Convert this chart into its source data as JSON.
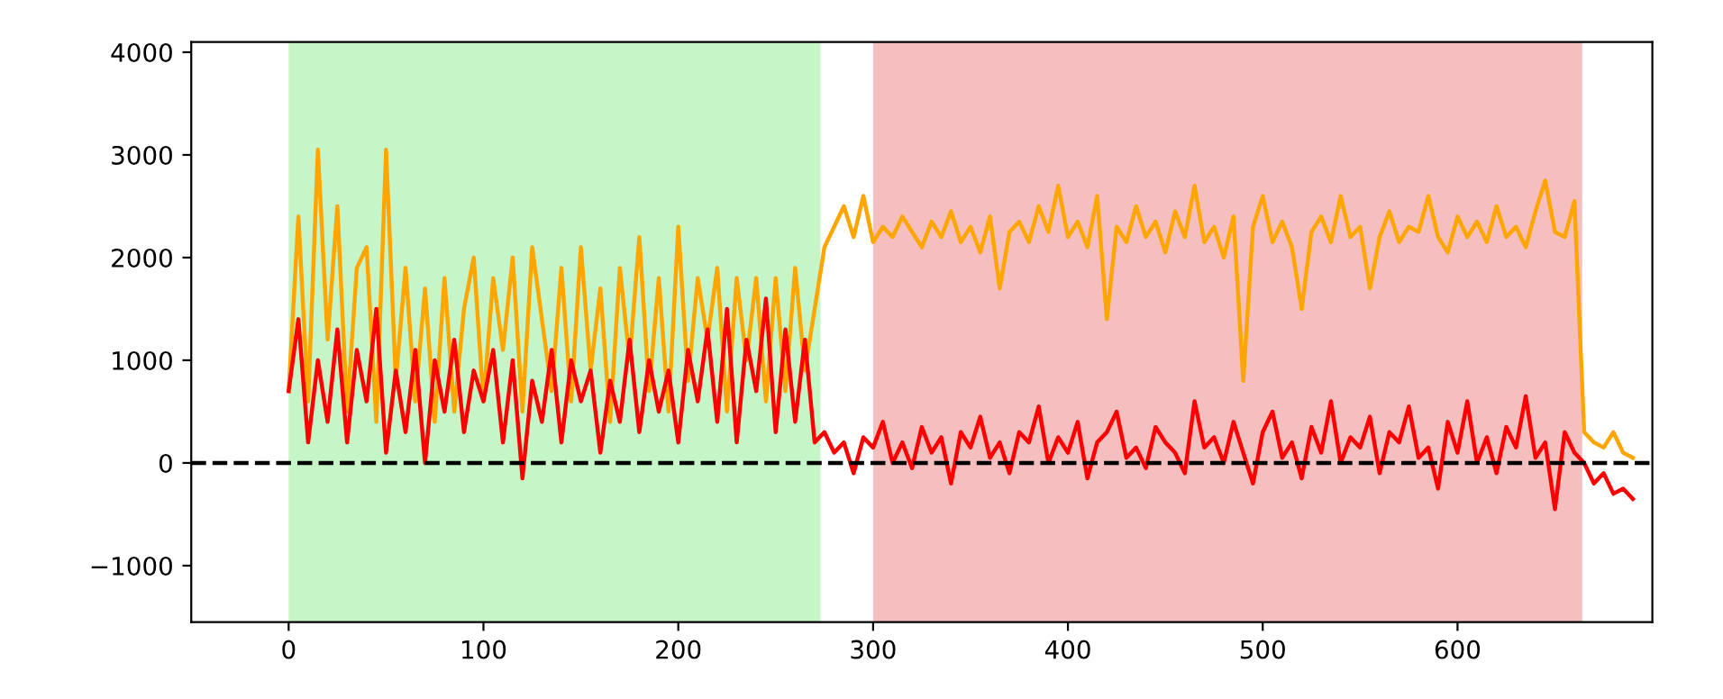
{
  "chart_data": {
    "type": "line",
    "x": [
      0,
      5,
      10,
      15,
      20,
      25,
      30,
      35,
      40,
      45,
      50,
      55,
      60,
      65,
      70,
      75,
      80,
      85,
      90,
      95,
      100,
      105,
      110,
      115,
      120,
      125,
      130,
      135,
      140,
      145,
      150,
      155,
      160,
      165,
      170,
      175,
      180,
      185,
      190,
      195,
      200,
      205,
      210,
      215,
      220,
      225,
      230,
      235,
      240,
      245,
      250,
      255,
      260,
      265,
      270,
      275,
      280,
      285,
      290,
      295,
      300,
      305,
      310,
      315,
      320,
      325,
      330,
      335,
      340,
      345,
      350,
      355,
      360,
      365,
      370,
      375,
      380,
      385,
      390,
      395,
      400,
      405,
      410,
      415,
      420,
      425,
      430,
      435,
      440,
      445,
      450,
      455,
      460,
      465,
      470,
      475,
      480,
      485,
      490,
      495,
      500,
      505,
      510,
      515,
      520,
      525,
      530,
      535,
      540,
      545,
      550,
      555,
      560,
      565,
      570,
      575,
      580,
      585,
      590,
      595,
      600,
      605,
      610,
      615,
      620,
      625,
      630,
      635,
      640,
      645,
      650,
      655,
      660,
      665,
      670,
      675,
      680,
      685,
      690
    ],
    "series": [
      {
        "color": "#ffa500",
        "values": [
          700,
          2400,
          600,
          3050,
          1200,
          2500,
          500,
          1900,
          2100,
          400,
          3050,
          800,
          1900,
          600,
          1700,
          400,
          1800,
          500,
          1500,
          2000,
          600,
          1800,
          1100,
          2000,
          500,
          2100,
          1400,
          700,
          1900,
          600,
          2100,
          900,
          1700,
          400,
          1900,
          1000,
          2200,
          700,
          1800,
          500,
          2300,
          800,
          1800,
          1200,
          1900,
          500,
          1800,
          1000,
          1800,
          600,
          1800,
          700,
          1900,
          900,
          1500,
          2100,
          2300,
          2500,
          2200,
          2600,
          2150,
          2300,
          2200,
          2400,
          2250,
          2100,
          2350,
          2200,
          2450,
          2150,
          2300,
          2050,
          2400,
          1700,
          2250,
          2350,
          2150,
          2500,
          2250,
          2700,
          2200,
          2350,
          2100,
          2600,
          1400,
          2300,
          2150,
          2500,
          2200,
          2350,
          2050,
          2450,
          2200,
          2700,
          2150,
          2300,
          2000,
          2400,
          800,
          2300,
          2600,
          2150,
          2350,
          2100,
          1500,
          2250,
          2400,
          2150,
          2600,
          2200,
          2300,
          1700,
          2200,
          2450,
          2150,
          2300,
          2250,
          2600,
          2200,
          2050,
          2400,
          2200,
          2350,
          2150,
          2500,
          2200,
          2300,
          2100,
          2450,
          2750,
          2250,
          2200,
          2550,
          300,
          200,
          150,
          300,
          100,
          50
        ]
      },
      {
        "color": "#ff0000",
        "values": [
          700,
          1400,
          200,
          1000,
          400,
          1300,
          200,
          1100,
          600,
          1500,
          100,
          900,
          300,
          1100,
          0,
          1000,
          500,
          1200,
          300,
          900,
          600,
          1100,
          200,
          1000,
          -150,
          800,
          400,
          1100,
          200,
          1000,
          600,
          900,
          100,
          800,
          400,
          1200,
          300,
          1000,
          500,
          900,
          200,
          1100,
          600,
          1300,
          400,
          1500,
          200,
          1200,
          700,
          1600,
          300,
          1300,
          400,
          1200,
          200,
          300,
          100,
          200,
          -100,
          250,
          150,
          400,
          0,
          200,
          -50,
          350,
          100,
          250,
          -200,
          300,
          150,
          450,
          50,
          200,
          -100,
          300,
          200,
          550,
          0,
          250,
          100,
          400,
          -150,
          200,
          300,
          500,
          50,
          150,
          -50,
          350,
          200,
          100,
          -100,
          600,
          150,
          250,
          0,
          400,
          100,
          -200,
          300,
          500,
          50,
          200,
          -150,
          350,
          100,
          600,
          0,
          250,
          150,
          450,
          -100,
          300,
          200,
          550,
          50,
          150,
          -250,
          400,
          100,
          600,
          0,
          250,
          -100,
          350,
          150,
          650,
          50,
          200,
          -450,
          300,
          100,
          0,
          -200,
          -100,
          -300,
          -250,
          -350
        ]
      }
    ],
    "xlim": [
      -50,
      700
    ],
    "ylim": [
      -1550,
      4100
    ],
    "xticks": [
      0,
      100,
      200,
      300,
      400,
      500,
      600
    ],
    "yticks": [
      -1000,
      0,
      1000,
      2000,
      3000,
      4000
    ],
    "ref_lines": [
      {
        "axis": "y",
        "value": 0,
        "color": "#000000",
        "line_style": "dashed"
      }
    ],
    "bands": [
      {
        "axis": "x",
        "from": 0,
        "to": 273,
        "color": "#c6f5c8"
      },
      {
        "axis": "x",
        "from": 300,
        "to": 664,
        "color": "#f5bfc0"
      }
    ],
    "grid": false,
    "legend": false,
    "line_style": "solid"
  }
}
